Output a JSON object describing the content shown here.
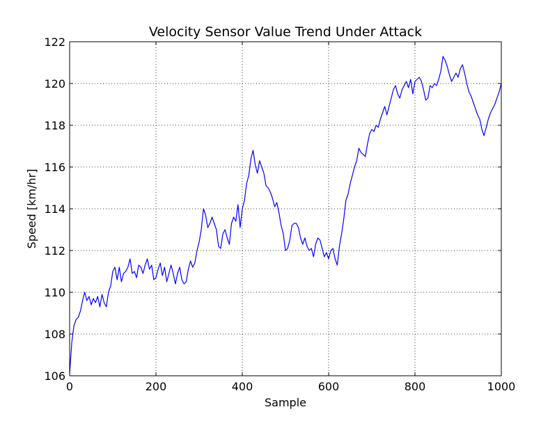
{
  "chart_data": {
    "type": "line",
    "title": "Velocity Sensor Value Trend Under Attack",
    "xlabel": "Sample",
    "ylabel": "Speed [km/hr]",
    "xlim": [
      0,
      1000
    ],
    "ylim": [
      106,
      122
    ],
    "xticks": [
      0,
      200,
      400,
      600,
      800,
      1000
    ],
    "yticks": [
      106,
      108,
      110,
      112,
      114,
      116,
      118,
      120,
      122
    ],
    "grid": true,
    "legend": "none",
    "series": [
      {
        "color": "#0000ff",
        "x": [
          0,
          5,
          10,
          15,
          20,
          25,
          30,
          35,
          40,
          45,
          50,
          55,
          60,
          65,
          70,
          75,
          80,
          85,
          90,
          95,
          100,
          105,
          110,
          115,
          120,
          125,
          130,
          135,
          140,
          145,
          150,
          155,
          160,
          165,
          170,
          175,
          180,
          185,
          190,
          195,
          200,
          205,
          210,
          215,
          220,
          225,
          230,
          235,
          240,
          245,
          250,
          255,
          260,
          265,
          270,
          275,
          280,
          285,
          290,
          295,
          300,
          305,
          310,
          315,
          320,
          325,
          330,
          335,
          340,
          345,
          350,
          355,
          360,
          365,
          370,
          375,
          380,
          385,
          390,
          395,
          400,
          405,
          410,
          415,
          420,
          425,
          430,
          435,
          440,
          445,
          450,
          455,
          460,
          465,
          470,
          475,
          480,
          485,
          490,
          495,
          500,
          505,
          510,
          515,
          520,
          525,
          530,
          535,
          540,
          545,
          550,
          555,
          560,
          565,
          570,
          575,
          580,
          585,
          590,
          595,
          600,
          605,
          610,
          615,
          620,
          625,
          630,
          635,
          640,
          645,
          650,
          655,
          660,
          665,
          670,
          675,
          680,
          685,
          690,
          695,
          700,
          705,
          710,
          715,
          720,
          725,
          730,
          735,
          740,
          745,
          750,
          755,
          760,
          765,
          770,
          775,
          780,
          785,
          790,
          795,
          800,
          805,
          810,
          815,
          820,
          825,
          830,
          835,
          840,
          845,
          850,
          855,
          860,
          865,
          870,
          875,
          880,
          885,
          890,
          895,
          900,
          905,
          910,
          915,
          920,
          925,
          930,
          935,
          940,
          945,
          950,
          955,
          960,
          965,
          970,
          975,
          980,
          985,
          990,
          995,
          1000
        ],
        "y": [
          106.1,
          107.6,
          108.4,
          108.7,
          108.8,
          109.1,
          109.6,
          110.0,
          109.6,
          109.8,
          109.4,
          109.7,
          109.5,
          109.8,
          109.3,
          109.9,
          109.5,
          109.3,
          110.0,
          110.3,
          111.0,
          111.2,
          110.6,
          111.2,
          110.5,
          110.9,
          111.0,
          111.2,
          111.6,
          110.9,
          111.0,
          110.7,
          111.3,
          111.2,
          110.9,
          111.3,
          111.6,
          111.1,
          111.3,
          110.6,
          110.7,
          111.1,
          111.4,
          110.8,
          111.2,
          110.5,
          110.9,
          111.3,
          110.9,
          110.4,
          110.9,
          111.2,
          110.6,
          110.4,
          110.5,
          111.1,
          111.5,
          111.2,
          111.4,
          112.0,
          112.4,
          113.0,
          114.0,
          113.7,
          113.1,
          113.3,
          113.6,
          113.3,
          113.0,
          112.2,
          112.1,
          112.8,
          113.0,
          112.6,
          112.3,
          113.3,
          113.6,
          113.4,
          114.2,
          113.1,
          114.0,
          114.4,
          115.2,
          115.6,
          116.4,
          116.8,
          116.1,
          115.7,
          116.3,
          116.0,
          115.7,
          115.1,
          115.0,
          114.8,
          114.5,
          114.1,
          114.3,
          113.8,
          113.2,
          112.8,
          112.0,
          112.1,
          112.5,
          113.2,
          113.3,
          113.3,
          113.1,
          112.6,
          112.3,
          112.6,
          112.2,
          112.0,
          112.1,
          111.7,
          112.3,
          112.6,
          112.5,
          112.1,
          111.7,
          111.9,
          111.6,
          112.0,
          112.1,
          111.6,
          111.3,
          112.2,
          112.8,
          113.5,
          114.4,
          114.7,
          115.2,
          115.6,
          116.0,
          116.3,
          116.9,
          116.7,
          116.6,
          116.5,
          117.1,
          117.6,
          117.8,
          117.7,
          118.0,
          117.9,
          118.3,
          118.6,
          118.9,
          118.5,
          118.9,
          119.3,
          119.7,
          119.9,
          119.5,
          119.3,
          119.7,
          119.9,
          120.1,
          119.8,
          120.2,
          119.5,
          120.1,
          120.2,
          120.3,
          120.1,
          119.7,
          119.2,
          119.3,
          119.9,
          119.8,
          120.0,
          119.9,
          120.2,
          120.6,
          121.3,
          121.1,
          120.8,
          120.4,
          120.1,
          120.3,
          120.5,
          120.3,
          120.7,
          120.9,
          120.5,
          120.0,
          119.6,
          119.4,
          119.1,
          118.8,
          118.5,
          118.3,
          117.8,
          117.5,
          117.9,
          118.3,
          118.6,
          118.8,
          119.0,
          119.3,
          119.6,
          120.0
        ]
      }
    ]
  }
}
